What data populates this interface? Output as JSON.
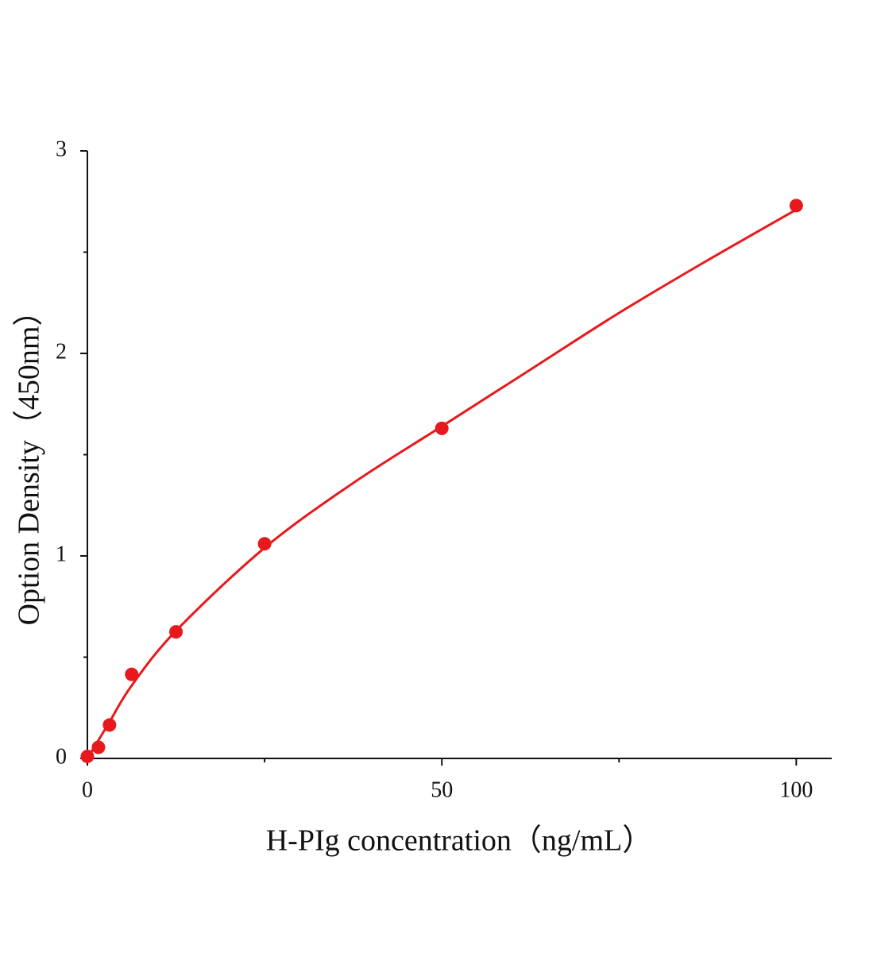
{
  "chart_data": {
    "type": "scatter",
    "xlabel": "H-PIg concentration（ng/mL）",
    "ylabel": "Option Density（450nm）",
    "xlim": [
      0,
      105
    ],
    "ylim": [
      0,
      3
    ],
    "xticks": [
      0,
      50,
      100
    ],
    "yticks": [
      0,
      1,
      2,
      3
    ],
    "xminorticks": [
      25,
      75
    ],
    "yminorticks": [
      0.5,
      1.5,
      2.5
    ],
    "series": [
      {
        "type": "scatter",
        "color": "#e8191c",
        "x": [
          0,
          1.5625,
          3.125,
          6.25,
          12.5,
          25,
          50,
          100
        ],
        "values": [
          0.01,
          0.055,
          0.165,
          0.415,
          0.625,
          1.06,
          1.63,
          2.73
        ]
      },
      {
        "type": "line",
        "color": "#e8191c",
        "x": [
          0,
          1.5625,
          3.125,
          6.25,
          12.5,
          25,
          37.5,
          50,
          62.5,
          75,
          87.5,
          100
        ],
        "values": [
          0.0,
          0.09,
          0.18,
          0.36,
          0.63,
          1.04,
          1.36,
          1.64,
          1.92,
          2.2,
          2.46,
          2.71
        ]
      }
    ]
  }
}
